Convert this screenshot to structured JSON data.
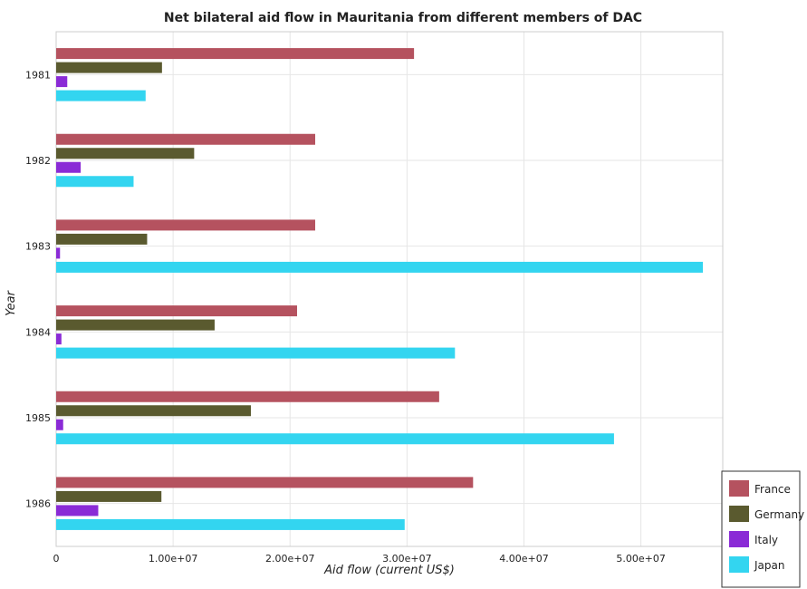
{
  "chart_data": {
    "type": "bar",
    "orientation": "horizontal",
    "title": "Net bilateral aid flow in Mauritania from different members of DAC",
    "xlabel": "Aid flow (current US$)",
    "ylabel": "Year",
    "categories": [
      "1981",
      "1982",
      "1983",
      "1984",
      "1985",
      "1986"
    ],
    "xlim": [
      0,
      57000000
    ],
    "xticks": [
      0,
      10000000,
      20000000,
      30000000,
      40000000,
      50000000
    ],
    "xtick_labels": [
      "0",
      "1.00e+07",
      "2.00e+07",
      "3.00e+07",
      "4.00e+07",
      "5.00e+07"
    ],
    "grid": true,
    "legend_position": "bottom-right",
    "series": [
      {
        "name": "France",
        "color": "#b5525f",
        "values": [
          30600000,
          22150000,
          22150000,
          20600000,
          32750000,
          35650000
        ]
      },
      {
        "name": "Germany",
        "color": "#5a5a2f",
        "values": [
          9050000,
          11800000,
          7780000,
          13550000,
          16650000,
          9000000
        ]
      },
      {
        "name": "Italy",
        "color": "#8a2bd6",
        "values": [
          950000,
          2100000,
          330000,
          450000,
          600000,
          3600000
        ]
      },
      {
        "name": "Japan",
        "color": "#33d5f0",
        "values": [
          7650000,
          6620000,
          55300000,
          34100000,
          47700000,
          29800000
        ]
      }
    ]
  }
}
